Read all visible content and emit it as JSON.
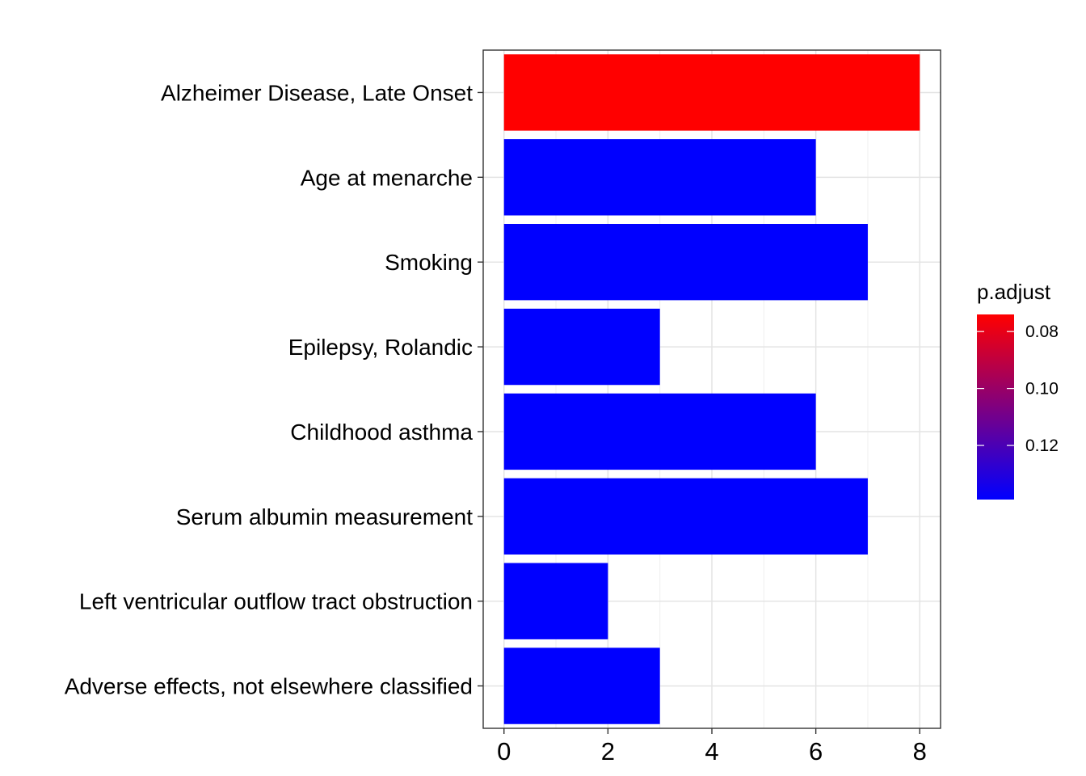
{
  "chart_data": {
    "type": "bar",
    "orientation": "horizontal",
    "categories": [
      "Alzheimer Disease, Late Onset",
      "Age at menarche",
      "Smoking",
      "Epilepsy, Rolandic",
      "Childhood asthma",
      "Serum albumin measurement",
      "Left ventricular outflow tract obstruction",
      "Adverse effects, not elsewhere classified"
    ],
    "values": [
      8,
      6,
      7,
      3,
      6,
      7,
      2,
      3
    ],
    "bar_colors": [
      "#FF0000",
      "#0000FF",
      "#0000FF",
      "#0000FF",
      "#0000FF",
      "#0000FF",
      "#0000FF",
      "#0000FF"
    ],
    "p_adjust": [
      0.074,
      0.139,
      0.139,
      0.139,
      0.139,
      0.139,
      0.139,
      0.139
    ],
    "xlim": [
      -0.4,
      8.4
    ],
    "x_ticks": [
      0,
      2,
      4,
      6,
      8
    ],
    "title": "",
    "xlabel": "",
    "ylabel": "",
    "grid": true,
    "legend": {
      "title": "p.adjust",
      "position": "right",
      "range": [
        0.074,
        0.139
      ],
      "breaks": [
        0.08,
        0.1,
        0.12
      ],
      "break_labels": [
        "0.08",
        "0.10",
        "0.12"
      ],
      "color_low": "#FF0000",
      "color_high": "#0000FF"
    }
  }
}
